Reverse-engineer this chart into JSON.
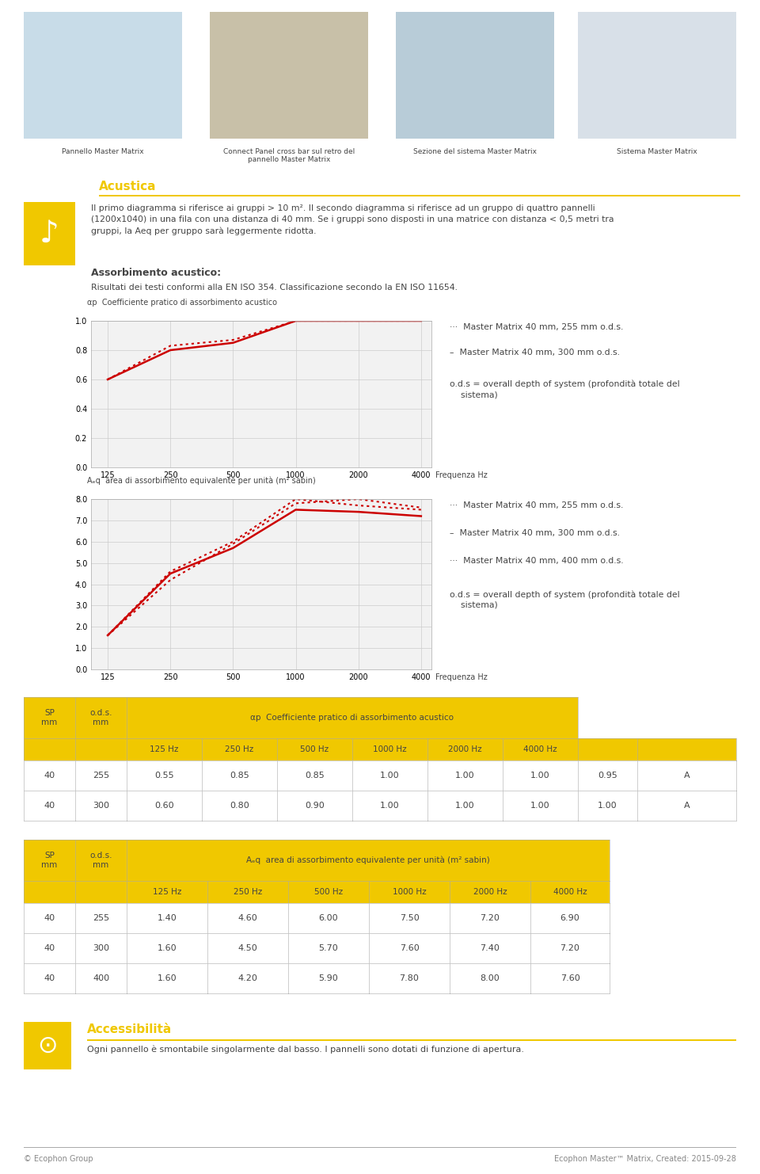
{
  "bg_color": "#ffffff",
  "header_captions": [
    "Pannello Master Matrix",
    "Connect Panel cross bar sul retro del\npannello Master Matrix",
    "Sezione del sistema Master Matrix",
    "Sistema Master Matrix"
  ],
  "section_title": "Acustica",
  "section_text1": "Il primo diagramma si riferisce ai gruppi > 10 m². Il secondo diagramma si riferisce ad un gruppo di quattro pannelli\n(1200x1040) in una fila con una distanza di 40 mm. Se i gruppi sono disposti in una matrice con distanza < 0,5 metri tra\ngruppi, la Aeq per gruppo sarà leggermente ridotta.",
  "subsection_title": "Assorbimento acustico:",
  "subsection_text": "Risultati dei testi conformi alla EN ISO 354. Classificazione secondo la EN ISO 11654.",
  "chart1_ylabel": "αp  Coefficiente pratico di assorbimento acustico",
  "chart1_xlabel": "Frequenza Hz",
  "chart1_yticks": [
    0.0,
    0.2,
    0.4,
    0.6,
    0.8,
    1.0
  ],
  "chart1_xticks": [
    125,
    250,
    500,
    1000,
    2000,
    4000
  ],
  "chart1_series": [
    {
      "style": "dotted",
      "color": "#cc0000",
      "x": [
        125,
        250,
        500,
        1000,
        2000,
        4000
      ],
      "y": [
        0.6,
        0.83,
        0.87,
        1.0,
        1.0,
        1.0
      ]
    },
    {
      "style": "solid",
      "color": "#cc0000",
      "x": [
        125,
        250,
        500,
        1000,
        2000,
        4000
      ],
      "y": [
        0.6,
        0.8,
        0.85,
        1.0,
        1.0,
        1.0
      ]
    }
  ],
  "chart1_leg1": "···  Master Matrix 40 mm, 255 mm o.d.s.",
  "chart1_leg2": "–  Master Matrix 40 mm, 300 mm o.d.s.",
  "chart1_leg3": "o.d.s = overall depth of system (profondità totale del\n    sistema)",
  "chart2_ylabel": "Aₑq  area di assorbimento equivalente per unità (m² sabin)",
  "chart2_xlabel": "Frequenza Hz",
  "chart2_yticks": [
    0.0,
    1.0,
    2.0,
    3.0,
    4.0,
    5.0,
    6.0,
    7.0,
    8.0
  ],
  "chart2_xticks": [
    125,
    250,
    500,
    1000,
    2000,
    4000
  ],
  "chart2_series": [
    {
      "style": "dotted",
      "color": "#cc0000",
      "x": [
        125,
        250,
        500,
        1000,
        2000,
        4000
      ],
      "y": [
        1.6,
        4.6,
        6.0,
        8.0,
        7.7,
        7.5
      ]
    },
    {
      "style": "solid",
      "color": "#cc0000",
      "x": [
        125,
        250,
        500,
        1000,
        2000,
        4000
      ],
      "y": [
        1.6,
        4.5,
        5.7,
        7.5,
        7.4,
        7.2
      ]
    },
    {
      "style": "dotted2",
      "color": "#cc0000",
      "x": [
        125,
        250,
        500,
        1000,
        2000,
        4000
      ],
      "y": [
        1.6,
        4.2,
        5.9,
        7.8,
        8.0,
        7.6
      ]
    }
  ],
  "chart2_leg1": "···  Master Matrix 40 mm, 255 mm o.d.s.",
  "chart2_leg2": "–  Master Matrix 40 mm, 300 mm o.d.s.",
  "chart2_leg3": "···  Master Matrix 40 mm, 400 mm o.d.s.",
  "chart2_leg4": "o.d.s = overall depth of system (profondità totale del\n    sistema)",
  "yellow": "#f0c800",
  "dark": "#444444",
  "gray": "#888888",
  "grid_color": "#cccccc",
  "chart_bg": "#f2f2f2",
  "table1_data": [
    [
      "40",
      "255",
      "0.55",
      "0.85",
      "0.85",
      "1.00",
      "1.00",
      "1.00",
      "0.95",
      "A"
    ],
    [
      "40",
      "300",
      "0.60",
      "0.80",
      "0.90",
      "1.00",
      "1.00",
      "1.00",
      "1.00",
      "A"
    ]
  ],
  "table2_data": [
    [
      "40",
      "255",
      "1.40",
      "4.60",
      "6.00",
      "7.50",
      "7.20",
      "6.90"
    ],
    [
      "40",
      "300",
      "1.60",
      "4.50",
      "5.70",
      "7.60",
      "7.40",
      "7.20"
    ],
    [
      "40",
      "400",
      "1.60",
      "4.20",
      "5.90",
      "7.80",
      "8.00",
      "7.60"
    ]
  ],
  "access_title": "Accessibilità",
  "access_text": "Ogni pannello è smontabile singolarmente dal basso. I pannelli sono dotati di funzione di apertura.",
  "footer_left": "© Ecophon Group",
  "footer_right": "Ecophon Master™ Matrix, Created: 2015-09-28"
}
